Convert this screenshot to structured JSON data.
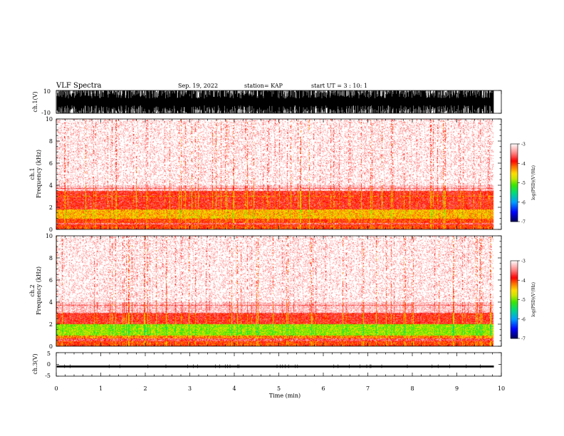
{
  "header": {
    "title": "VLF Spectra",
    "date": "Sep. 19, 2022",
    "station": "station= KAP",
    "start_ut": "start UT =  3 : 10: 1"
  },
  "chart_data": [
    {
      "type": "line",
      "name": "ch1-waveform",
      "ylabel": "ch.1(V)",
      "ylim": [
        -10,
        10
      ],
      "yticks": [
        "10",
        "-10"
      ],
      "xlim": [
        0,
        10
      ],
      "data_xlim": [
        0,
        9.83
      ],
      "y_min_envelope": -10,
      "y_max_envelope": 10
    },
    {
      "type": "heatmap",
      "name": "ch1-spectrogram",
      "ylabel": "ch.1\nFrequency (kHz)",
      "ylim": [
        0,
        10
      ],
      "yticks": [
        "0",
        "2",
        "4",
        "6",
        "8",
        "10"
      ],
      "xlim": [
        0,
        10
      ],
      "data_xlim": [
        0,
        9.83
      ],
      "colorbar": {
        "label": "log(PSD)(V²/Hz)",
        "range": [
          -7,
          -3
        ],
        "ticks": [
          "-3",
          "-4",
          "-5",
          "-6",
          "-7"
        ]
      },
      "bands_khz": [
        {
          "range": [
            0,
            0.3
          ],
          "level": -4.0
        },
        {
          "range": [
            0.3,
            0.6
          ],
          "level": -3.5
        },
        {
          "range": [
            0.6,
            1.0
          ],
          "level": -4.0
        },
        {
          "range": [
            1.0,
            1.8
          ],
          "level": -4.4
        },
        {
          "range": [
            1.8,
            3.5
          ],
          "level": -3.8
        },
        {
          "range": [
            3.5,
            10
          ],
          "level": -3.2
        }
      ]
    },
    {
      "type": "heatmap",
      "name": "ch2-spectrogram",
      "ylabel": "ch.2\nFrequency (kHz)",
      "ylim": [
        0,
        10
      ],
      "yticks": [
        "0",
        "2",
        "4",
        "6",
        "8",
        "10"
      ],
      "xlim": [
        0,
        10
      ],
      "data_xlim": [
        0,
        9.83
      ],
      "colorbar": {
        "label": "log(PSD)(V²/Hz)",
        "range": [
          -7,
          -3
        ],
        "ticks": [
          "-3",
          "-4",
          "-5",
          "-6",
          "-7"
        ]
      },
      "bands_khz": [
        {
          "range": [
            0,
            0.3
          ],
          "level": -4.0
        },
        {
          "range": [
            0.3,
            0.7
          ],
          "level": -3.6
        },
        {
          "range": [
            0.7,
            1.0
          ],
          "level": -4.2
        },
        {
          "range": [
            1.0,
            2.0
          ],
          "level": -4.9
        },
        {
          "range": [
            2.0,
            3.0
          ],
          "level": -3.8
        },
        {
          "range": [
            3.0,
            10
          ],
          "level": -3.2
        }
      ]
    },
    {
      "type": "line",
      "name": "ch3-waveform",
      "ylabel": "ch.3(V)",
      "ylim": [
        -5,
        5
      ],
      "yticks": [
        "5",
        "0",
        "-5"
      ],
      "xlim": [
        0,
        10
      ],
      "data_xlim": [
        0,
        9.83
      ],
      "y_min_envelope": -1.3,
      "y_max_envelope": -0.5
    }
  ],
  "xaxis": {
    "label": "Time (min)",
    "ticks": [
      "0",
      "1",
      "2",
      "3",
      "4",
      "5",
      "6",
      "7",
      "8",
      "9",
      "10"
    ]
  }
}
